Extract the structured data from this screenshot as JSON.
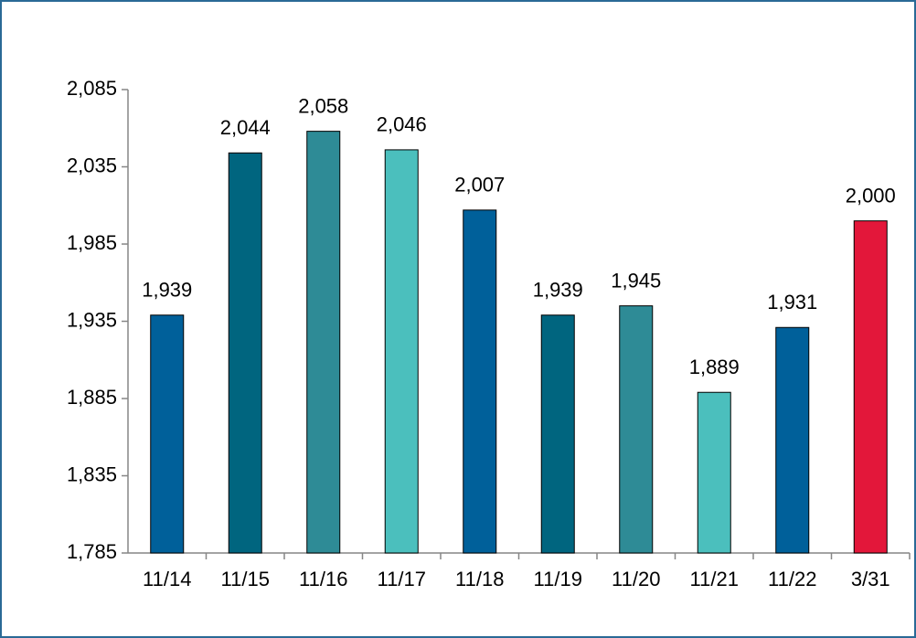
{
  "chart_data": {
    "type": "bar",
    "categories": [
      "11/14",
      "11/15",
      "11/16",
      "11/17",
      "11/18",
      "11/19",
      "11/20",
      "11/21",
      "11/22",
      "3/31"
    ],
    "values": [
      1939,
      2044,
      2058,
      2046,
      2007,
      1939,
      1945,
      1889,
      1931,
      2000
    ],
    "value_labels": [
      "1,939",
      "2,044",
      "2,058",
      "2,046",
      "2,007",
      "1,939",
      "1,945",
      "1,889",
      "1,931",
      "2,000"
    ],
    "colors": [
      "#00609a",
      "#00657f",
      "#2e8b96",
      "#4bbfbd",
      "#00609a",
      "#00657f",
      "#2e8b96",
      "#4bbfbd",
      "#00609a",
      "#e3173a"
    ],
    "ylim": [
      1785,
      2085
    ],
    "yticks": [
      {
        "value": 1785,
        "label": "1,785"
      },
      {
        "value": 1835,
        "label": "1,835"
      },
      {
        "value": 1885,
        "label": "1,885"
      },
      {
        "value": 1935,
        "label": "1,935"
      },
      {
        "value": 1985,
        "label": "1,985"
      },
      {
        "value": 2035,
        "label": "2,035"
      },
      {
        "value": 2085,
        "label": "2,085"
      }
    ],
    "grid": false
  }
}
